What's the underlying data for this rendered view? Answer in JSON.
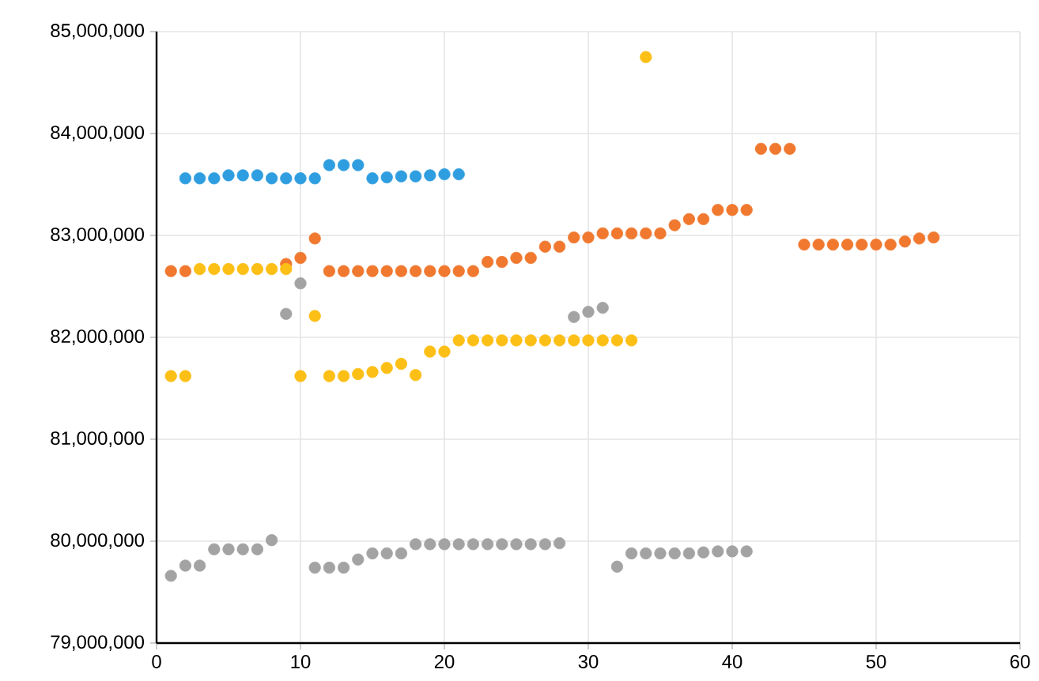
{
  "chart_data": {
    "type": "scatter",
    "xlim": [
      0,
      60
    ],
    "xticks": [
      0,
      10,
      20,
      30,
      40,
      50,
      60
    ],
    "ylim": [
      79000000,
      85000000
    ],
    "yticks": [
      {
        "value": 79000000,
        "label": "79,000,000"
      },
      {
        "value": 80000000,
        "label": "80,000,000"
      },
      {
        "value": 81000000,
        "label": "81,000,000"
      },
      {
        "value": 82000000,
        "label": "82,000,000"
      },
      {
        "value": 83000000,
        "label": "83,000,000"
      },
      {
        "value": 84000000,
        "label": "84,000,000"
      },
      {
        "value": 85000000,
        "label": "85,000,000"
      }
    ],
    "grid": true,
    "legend": false,
    "marker": "circle",
    "series": [
      {
        "color": "#2f9ee0",
        "x": [
          2,
          3,
          4,
          5,
          6,
          7,
          8,
          9,
          10,
          11,
          12,
          13,
          14,
          15,
          16,
          17,
          18,
          19,
          20,
          21
        ],
        "values": [
          83560000,
          83560000,
          83560000,
          83590000,
          83590000,
          83590000,
          83560000,
          83560000,
          83560000,
          83560000,
          83690000,
          83690000,
          83690000,
          83560000,
          83570000,
          83580000,
          83580000,
          83590000,
          83600000,
          83600000
        ]
      },
      {
        "color": "#f0792f",
        "x": [
          1,
          2,
          3,
          4,
          5,
          6,
          7,
          8,
          9,
          10,
          11,
          12,
          13,
          14,
          15,
          16,
          17,
          18,
          19,
          20,
          21,
          22,
          23,
          24,
          25,
          26,
          27,
          28,
          29,
          30,
          31,
          32,
          33,
          34,
          35,
          36,
          37,
          38,
          39,
          40,
          41,
          42,
          43,
          44,
          45,
          46,
          47,
          48,
          49,
          50,
          51,
          52,
          53,
          54
        ],
        "values": [
          82650000,
          82650000,
          null,
          null,
          null,
          null,
          null,
          null,
          82720000,
          82780000,
          82970000,
          82650000,
          82650000,
          82650000,
          82650000,
          82650000,
          82650000,
          82650000,
          82650000,
          82650000,
          82650000,
          82650000,
          82740000,
          82740000,
          82780000,
          82780000,
          82890000,
          82890000,
          82980000,
          82980000,
          83020000,
          83020000,
          83020000,
          83020000,
          83020000,
          83100000,
          83160000,
          83160000,
          83250000,
          83250000,
          83250000,
          83850000,
          83850000,
          83850000,
          82910000,
          82910000,
          82910000,
          82910000,
          82910000,
          82910000,
          82910000,
          82940000,
          82970000,
          82980000
        ]
      },
      {
        "color": "#fcbf16",
        "x": [
          1,
          2,
          3,
          4,
          5,
          6,
          7,
          8,
          9,
          10,
          11,
          12,
          13,
          14,
          15,
          16,
          17,
          18,
          19,
          20,
          21,
          22,
          23,
          24,
          25,
          26,
          27,
          28,
          29,
          30,
          31,
          32,
          33,
          34
        ],
        "values": [
          81620000,
          81620000,
          82670000,
          82670000,
          82670000,
          82670000,
          82670000,
          82670000,
          82670000,
          81620000,
          82210000,
          81620000,
          81620000,
          81640000,
          81660000,
          81700000,
          81740000,
          81630000,
          81860000,
          81860000,
          81970000,
          81970000,
          81970000,
          81970000,
          81970000,
          81970000,
          81970000,
          81970000,
          81970000,
          81970000,
          81970000,
          81970000,
          81970000,
          84750000
        ]
      },
      {
        "color": "#a3a3a3",
        "x": [
          1,
          2,
          3,
          4,
          5,
          6,
          7,
          8,
          9,
          10,
          11,
          12,
          13,
          14,
          15,
          16,
          17,
          18,
          19,
          20,
          21,
          22,
          23,
          24,
          25,
          26,
          27,
          28,
          29,
          30,
          31,
          32,
          33,
          34,
          35,
          36,
          37,
          38,
          39,
          40,
          41
        ],
        "values": [
          79660000,
          79760000,
          79760000,
          79920000,
          79920000,
          79920000,
          79920000,
          80010000,
          82230000,
          82530000,
          79740000,
          79740000,
          79740000,
          79820000,
          79880000,
          79880000,
          79880000,
          79970000,
          79970000,
          79970000,
          79970000,
          79970000,
          79970000,
          79970000,
          79970000,
          79970000,
          79970000,
          79980000,
          82200000,
          82250000,
          82290000,
          79750000,
          79880000,
          79880000,
          79880000,
          79880000,
          79880000,
          79890000,
          79900000,
          79900000,
          79900000
        ]
      }
    ]
  }
}
